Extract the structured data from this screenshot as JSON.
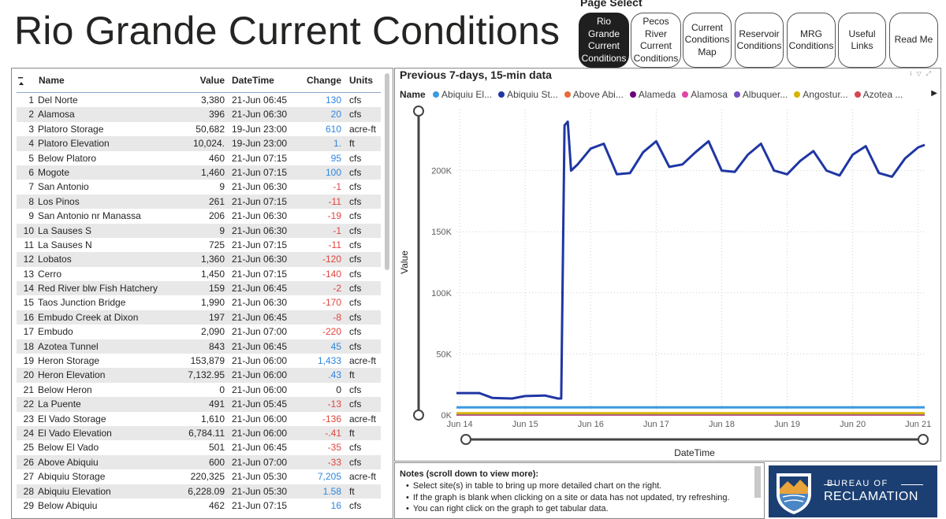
{
  "title": "Rio Grande Current Conditions",
  "page_select": {
    "label": "Page Select",
    "buttons": [
      {
        "label": "Rio Grande\nCurrent\nConditions",
        "active": true
      },
      {
        "label": "Pecos River\nCurrent\nConditions",
        "active": false
      },
      {
        "label": "Current\nConditions\nMap",
        "active": false
      },
      {
        "label": "Reservoir\nConditions",
        "active": false
      },
      {
        "label": "MRG\nConditions",
        "active": false
      },
      {
        "label": "Useful\nLinks",
        "active": false
      },
      {
        "label": "Read Me",
        "active": false
      }
    ]
  },
  "table": {
    "headers": {
      "name": "Name",
      "value": "Value",
      "datetime": "DateTime",
      "change": "Change",
      "units": "Units"
    },
    "rows": [
      {
        "idx": "1",
        "name": "Del Norte",
        "value": "3,380",
        "datetime": "21-Jun 06:45",
        "change": "130",
        "units": "cfs"
      },
      {
        "idx": "2",
        "name": "Alamosa",
        "value": "396",
        "datetime": "21-Jun 06:30",
        "change": "20",
        "units": "cfs"
      },
      {
        "idx": "3",
        "name": "Platoro Storage",
        "value": "50,682",
        "datetime": "19-Jun 23:00",
        "change": "610",
        "units": "acre-ft"
      },
      {
        "idx": "4",
        "name": "Platoro Elevation",
        "value": "10,024.",
        "datetime": "19-Jun 23:00",
        "change": "1.",
        "units": "ft"
      },
      {
        "idx": "5",
        "name": "Below Platoro",
        "value": "460",
        "datetime": "21-Jun 07:15",
        "change": "95",
        "units": "cfs"
      },
      {
        "idx": "6",
        "name": "Mogote",
        "value": "1,460",
        "datetime": "21-Jun 07:15",
        "change": "100",
        "units": "cfs"
      },
      {
        "idx": "7",
        "name": "San Antonio",
        "value": "9",
        "datetime": "21-Jun 06:30",
        "change": "-1",
        "units": "cfs"
      },
      {
        "idx": "8",
        "name": "Los Pinos",
        "value": "261",
        "datetime": "21-Jun 07:15",
        "change": "-11",
        "units": "cfs"
      },
      {
        "idx": "9",
        "name": "San Antonio nr Manassa",
        "value": "206",
        "datetime": "21-Jun 06:30",
        "change": "-19",
        "units": "cfs"
      },
      {
        "idx": "10",
        "name": "La Sauses S",
        "value": "9",
        "datetime": "21-Jun 06:30",
        "change": "-1",
        "units": "cfs"
      },
      {
        "idx": "11",
        "name": "La Sauses N",
        "value": "725",
        "datetime": "21-Jun 07:15",
        "change": "-11",
        "units": "cfs"
      },
      {
        "idx": "12",
        "name": "Lobatos",
        "value": "1,360",
        "datetime": "21-Jun 06:30",
        "change": "-120",
        "units": "cfs"
      },
      {
        "idx": "13",
        "name": "Cerro",
        "value": "1,450",
        "datetime": "21-Jun 07:15",
        "change": "-140",
        "units": "cfs"
      },
      {
        "idx": "14",
        "name": "Red River blw Fish Hatchery",
        "value": "159",
        "datetime": "21-Jun 06:45",
        "change": "-2",
        "units": "cfs"
      },
      {
        "idx": "15",
        "name": "Taos Junction Bridge",
        "value": "1,990",
        "datetime": "21-Jun 06:30",
        "change": "-170",
        "units": "cfs"
      },
      {
        "idx": "16",
        "name": "Embudo Creek at Dixon",
        "value": "197",
        "datetime": "21-Jun 06:45",
        "change": "-8",
        "units": "cfs"
      },
      {
        "idx": "17",
        "name": "Embudo",
        "value": "2,090",
        "datetime": "21-Jun 07:00",
        "change": "-220",
        "units": "cfs"
      },
      {
        "idx": "18",
        "name": "Azotea Tunnel",
        "value": "843",
        "datetime": "21-Jun 06:45",
        "change": "45",
        "units": "cfs"
      },
      {
        "idx": "19",
        "name": "Heron Storage",
        "value": "153,879",
        "datetime": "21-Jun 06:00",
        "change": "1,433",
        "units": "acre-ft"
      },
      {
        "idx": "20",
        "name": "Heron Elevation",
        "value": "7,132.95",
        "datetime": "21-Jun 06:00",
        "change": ".43",
        "units": "ft"
      },
      {
        "idx": "21",
        "name": "Below Heron",
        "value": "0",
        "datetime": "21-Jun 06:00",
        "change": "0",
        "units": "cfs"
      },
      {
        "idx": "22",
        "name": "La Puente",
        "value": "491",
        "datetime": "21-Jun 05:45",
        "change": "-13",
        "units": "cfs"
      },
      {
        "idx": "23",
        "name": "El Vado Storage",
        "value": "1,610",
        "datetime": "21-Jun 06:00",
        "change": "-136",
        "units": "acre-ft"
      },
      {
        "idx": "24",
        "name": "El Vado Elevation",
        "value": "6,784.11",
        "datetime": "21-Jun 06:00",
        "change": "-.41",
        "units": "ft"
      },
      {
        "idx": "25",
        "name": "Below El Vado",
        "value": "501",
        "datetime": "21-Jun 06:45",
        "change": "-35",
        "units": "cfs"
      },
      {
        "idx": "26",
        "name": "Above Abiquiu",
        "value": "600",
        "datetime": "21-Jun 07:00",
        "change": "-33",
        "units": "cfs"
      },
      {
        "idx": "27",
        "name": "Abiquiu Storage",
        "value": "220,325",
        "datetime": "21-Jun 05:30",
        "change": "7,205",
        "units": "acre-ft"
      },
      {
        "idx": "28",
        "name": "Abiquiu Elevation",
        "value": "6,228.09",
        "datetime": "21-Jun 05:30",
        "change": "1.58",
        "units": "ft"
      },
      {
        "idx": "29",
        "name": "Below Abiquiu",
        "value": "462",
        "datetime": "21-Jun 07:15",
        "change": "16",
        "units": "cfs"
      }
    ]
  },
  "chart_data": {
    "type": "line",
    "title": "Previous 7-days, 15-min data",
    "xlabel": "DateTime",
    "ylabel": "Value",
    "legend_title": "Name",
    "legend_placement": "top",
    "x_tick_labels": [
      "Jun 14",
      "Jun 15",
      "Jun 16",
      "Jun 17",
      "Jun 18",
      "Jun 19",
      "Jun 20",
      "Jun 21"
    ],
    "y_tick_labels": [
      "0K",
      "50K",
      "100K",
      "150K",
      "200K"
    ],
    "y_ticks": [
      0,
      50000,
      100000,
      150000,
      200000
    ],
    "ylim": [
      0,
      250000
    ],
    "xlim": [
      13.95,
      21.1
    ],
    "grid": true,
    "series": [
      {
        "name": "Abiquiu El...",
        "color": "#3b9ae1",
        "x": [
          13.95,
          21.1
        ],
        "values": [
          6228,
          6228
        ]
      },
      {
        "name": "Abiquiu St...",
        "color": "#1f36a3",
        "x": [
          13.95,
          14.3,
          14.5,
          14.8,
          15.0,
          15.3,
          15.5,
          15.55,
          15.6,
          15.65,
          15.7,
          15.8,
          16.0,
          16.2,
          16.4,
          16.6,
          16.8,
          17.0,
          17.2,
          17.4,
          17.6,
          17.8,
          18.0,
          18.2,
          18.4,
          18.6,
          18.8,
          19.0,
          19.2,
          19.4,
          19.6,
          19.8,
          20.0,
          20.2,
          20.4,
          20.6,
          20.8,
          21.0,
          21.1
        ],
        "values": [
          18000,
          18000,
          14000,
          13500,
          15500,
          16000,
          13500,
          13500,
          237000,
          240000,
          200000,
          205000,
          218000,
          222000,
          197000,
          198000,
          215000,
          224000,
          203000,
          205000,
          215000,
          224000,
          200000,
          199000,
          213000,
          222000,
          200000,
          197000,
          208000,
          216000,
          200000,
          196000,
          213000,
          220000,
          198000,
          195000,
          210000,
          219000,
          221000
        ]
      },
      {
        "name": "Above Abi...",
        "color": "#e66c37",
        "x": [
          13.95,
          21.1
        ],
        "values": [
          600,
          600
        ]
      },
      {
        "name": "Alameda",
        "color": "#6b007b",
        "x": [
          13.95,
          21.1
        ],
        "values": [
          800,
          800
        ]
      },
      {
        "name": "Alamosa",
        "color": "#e044a7",
        "x": [
          13.95,
          21.1
        ],
        "values": [
          396,
          396
        ]
      },
      {
        "name": "Albuquer...",
        "color": "#744ec2",
        "x": [
          13.95,
          21.1
        ],
        "values": [
          900,
          900
        ]
      },
      {
        "name": "Angostur...",
        "color": "#d9b300",
        "x": [
          13.95,
          21.1
        ],
        "values": [
          1500,
          1500
        ]
      },
      {
        "name": "Azotea ...",
        "color": "#d64550",
        "x": [
          13.95,
          21.1
        ],
        "values": [
          843,
          843
        ]
      }
    ]
  },
  "notes": {
    "title": "Notes (scroll down to view more):",
    "items": [
      "Select site(s) in table to bring up more detailed chart on the right.",
      "If the graph is blank when clicking on a site or data has not updated, try refreshing.",
      "You can right click on the graph to get tabular data."
    ]
  },
  "logo": {
    "top": "BUREAU OF",
    "main": "RECLAMATION"
  }
}
